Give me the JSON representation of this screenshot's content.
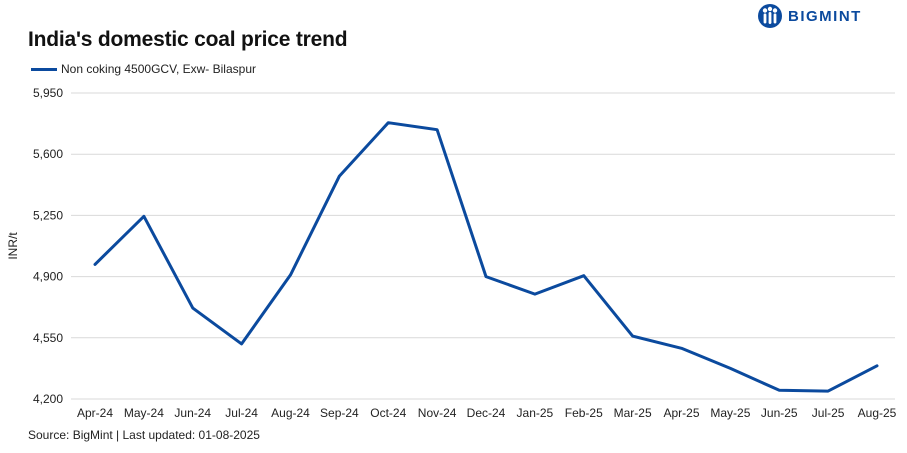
{
  "header": {
    "brand_name": "BIGMINT",
    "brand_icon": "bigmint-logo-icon"
  },
  "footer": {
    "source": "Source: BigMint | Last updated: 01-08-2025"
  },
  "colors": {
    "series": "#0B4A9E",
    "grid": "#d9d9d9"
  },
  "chart_data": {
    "type": "line",
    "title": "India's domestic coal price trend",
    "xlabel": "",
    "ylabel": "INR/t",
    "ylim": [
      4200,
      5950
    ],
    "yticks": [
      4200,
      4550,
      4900,
      5250,
      5600,
      5950
    ],
    "ytick_labels": [
      "4,200",
      "4,550",
      "4,900",
      "5,250",
      "5,600",
      "5,950"
    ],
    "grid": true,
    "legend_position": "top-left",
    "categories": [
      "Apr-24",
      "May-24",
      "Jun-24",
      "Jul-24",
      "Aug-24",
      "Sep-24",
      "Oct-24",
      "Nov-24",
      "Dec-24",
      "Jan-25",
      "Feb-25",
      "Mar-25",
      "Apr-25",
      "May-25",
      "Jun-25",
      "Jul-25",
      "Aug-25"
    ],
    "series": [
      {
        "name": "Non coking 4500GCV, Exw- Bilaspur",
        "values": [
          4970,
          5245,
          4720,
          4515,
          4910,
          5475,
          5780,
          5740,
          4900,
          4800,
          4905,
          4560,
          4490,
          4375,
          4250,
          4245,
          4390
        ]
      }
    ]
  }
}
